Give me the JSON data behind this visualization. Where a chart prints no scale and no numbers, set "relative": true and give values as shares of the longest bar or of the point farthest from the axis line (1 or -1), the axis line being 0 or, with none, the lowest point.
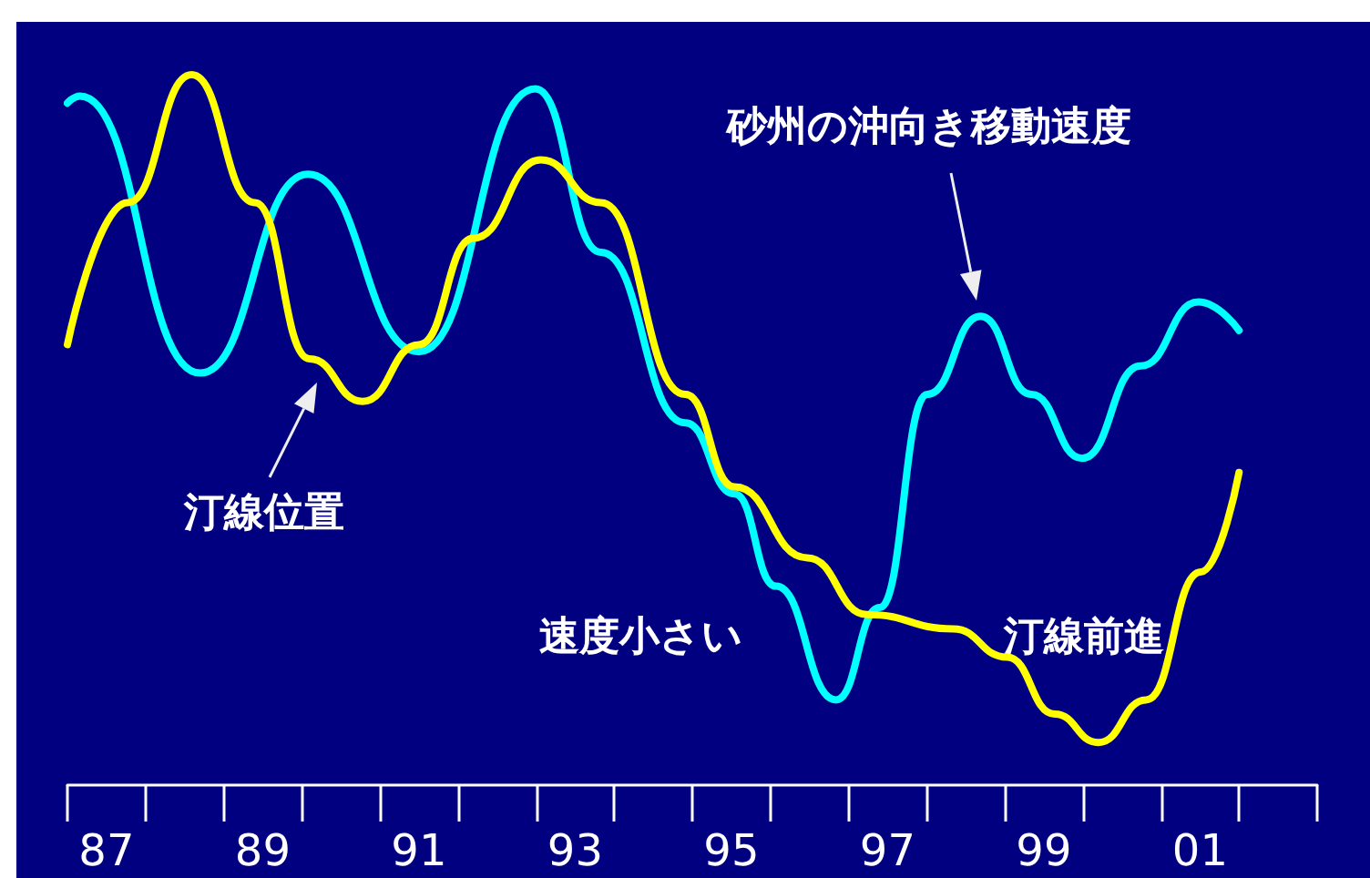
{
  "chart_data": {
    "type": "line",
    "relative": true,
    "series": [
      {
        "color": "#00ffff",
        "x": [
          1986.5,
          1986.66,
          1988.2,
          1989.58,
          1991.0,
          1992.49,
          1993.33,
          1994.41,
          1995.04,
          1995.57,
          1996.34,
          1996.9,
          1997.51,
          1998.19,
          1998.84,
          1999.49,
          2000.24,
          2000.98,
          2001.5
        ],
        "values": [
          0.96,
          0.97,
          0.58,
          0.86,
          0.61,
          0.98,
          0.75,
          0.51,
          0.41,
          0.28,
          0.12,
          0.25,
          0.55,
          0.66,
          0.55,
          0.46,
          0.59,
          0.68,
          0.64
        ]
      },
      {
        "color": "#ffff00",
        "x": [
          1986.5,
          1987.27,
          1988.09,
          1988.9,
          1989.6,
          1990.28,
          1991.0,
          1991.7,
          1992.56,
          1993.33,
          1994.41,
          1995.04,
          1995.97,
          1996.74,
          1997.84,
          1998.53,
          1999.14,
          1999.7,
          2000.31,
          2001.01,
          2001.5
        ],
        "values": [
          0.62,
          0.82,
          1.0,
          0.82,
          0.6,
          0.54,
          0.62,
          0.77,
          0.88,
          0.82,
          0.55,
          0.42,
          0.32,
          0.24,
          0.22,
          0.18,
          0.1,
          0.06,
          0.12,
          0.3,
          0.44
        ]
      }
    ],
    "xlim": [
      1986.5,
      2002.5
    ],
    "xticks": [
      {
        "value": 1987,
        "label": "87"
      },
      {
        "value": 1989,
        "label": "89"
      },
      {
        "value": 1991,
        "label": "91"
      },
      {
        "value": 1993,
        "label": "93"
      },
      {
        "value": 1995,
        "label": "95"
      },
      {
        "value": 1997,
        "label": "97"
      },
      {
        "value": 1999,
        "label": "99"
      },
      {
        "value": 2001,
        "label": "01"
      }
    ],
    "annotations": [
      "砂州の沖向き移動速度",
      "汀線位置",
      "速度小さい",
      "汀線前進"
    ],
    "marker": "none",
    "line_style": "solid",
    "grid": false
  }
}
